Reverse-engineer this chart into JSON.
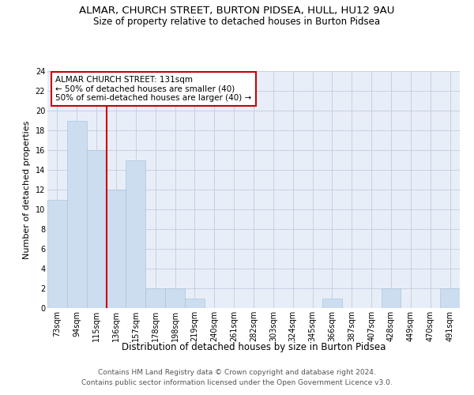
{
  "title": "ALMAR, CHURCH STREET, BURTON PIDSEA, HULL, HU12 9AU",
  "subtitle": "Size of property relative to detached houses in Burton Pidsea",
  "xlabel": "Distribution of detached houses by size in Burton Pidsea",
  "ylabel": "Number of detached properties",
  "categories": [
    "73sqm",
    "94sqm",
    "115sqm",
    "136sqm",
    "157sqm",
    "178sqm",
    "198sqm",
    "219sqm",
    "240sqm",
    "261sqm",
    "282sqm",
    "303sqm",
    "324sqm",
    "345sqm",
    "366sqm",
    "387sqm",
    "407sqm",
    "428sqm",
    "449sqm",
    "470sqm",
    "491sqm"
  ],
  "values": [
    11,
    19,
    16,
    12,
    15,
    2,
    2,
    1,
    0,
    0,
    0,
    0,
    0,
    0,
    1,
    0,
    0,
    2,
    0,
    0,
    2
  ],
  "bar_color": "#ccddf0",
  "bar_edge_color": "#aac4e0",
  "ref_line_x": 2.5,
  "ref_line_color": "#cc0000",
  "ylim": [
    0,
    24
  ],
  "yticks": [
    0,
    2,
    4,
    6,
    8,
    10,
    12,
    14,
    16,
    18,
    20,
    22,
    24
  ],
  "annotation_text": "ALMAR CHURCH STREET: 131sqm\n← 50% of detached houses are smaller (40)\n50% of semi-detached houses are larger (40) →",
  "annotation_box_facecolor": "#ffffff",
  "annotation_box_edgecolor": "#cc0000",
  "footer_line1": "Contains HM Land Registry data © Crown copyright and database right 2024.",
  "footer_line2": "Contains public sector information licensed under the Open Government Licence v3.0.",
  "background_color": "#ffffff",
  "axes_facecolor": "#e8eef8",
  "grid_color": "#c8d0e0",
  "title_fontsize": 9.5,
  "subtitle_fontsize": 8.5,
  "xlabel_fontsize": 8.5,
  "ylabel_fontsize": 8,
  "tick_fontsize": 7,
  "annotation_fontsize": 7.5,
  "footer_fontsize": 6.5
}
